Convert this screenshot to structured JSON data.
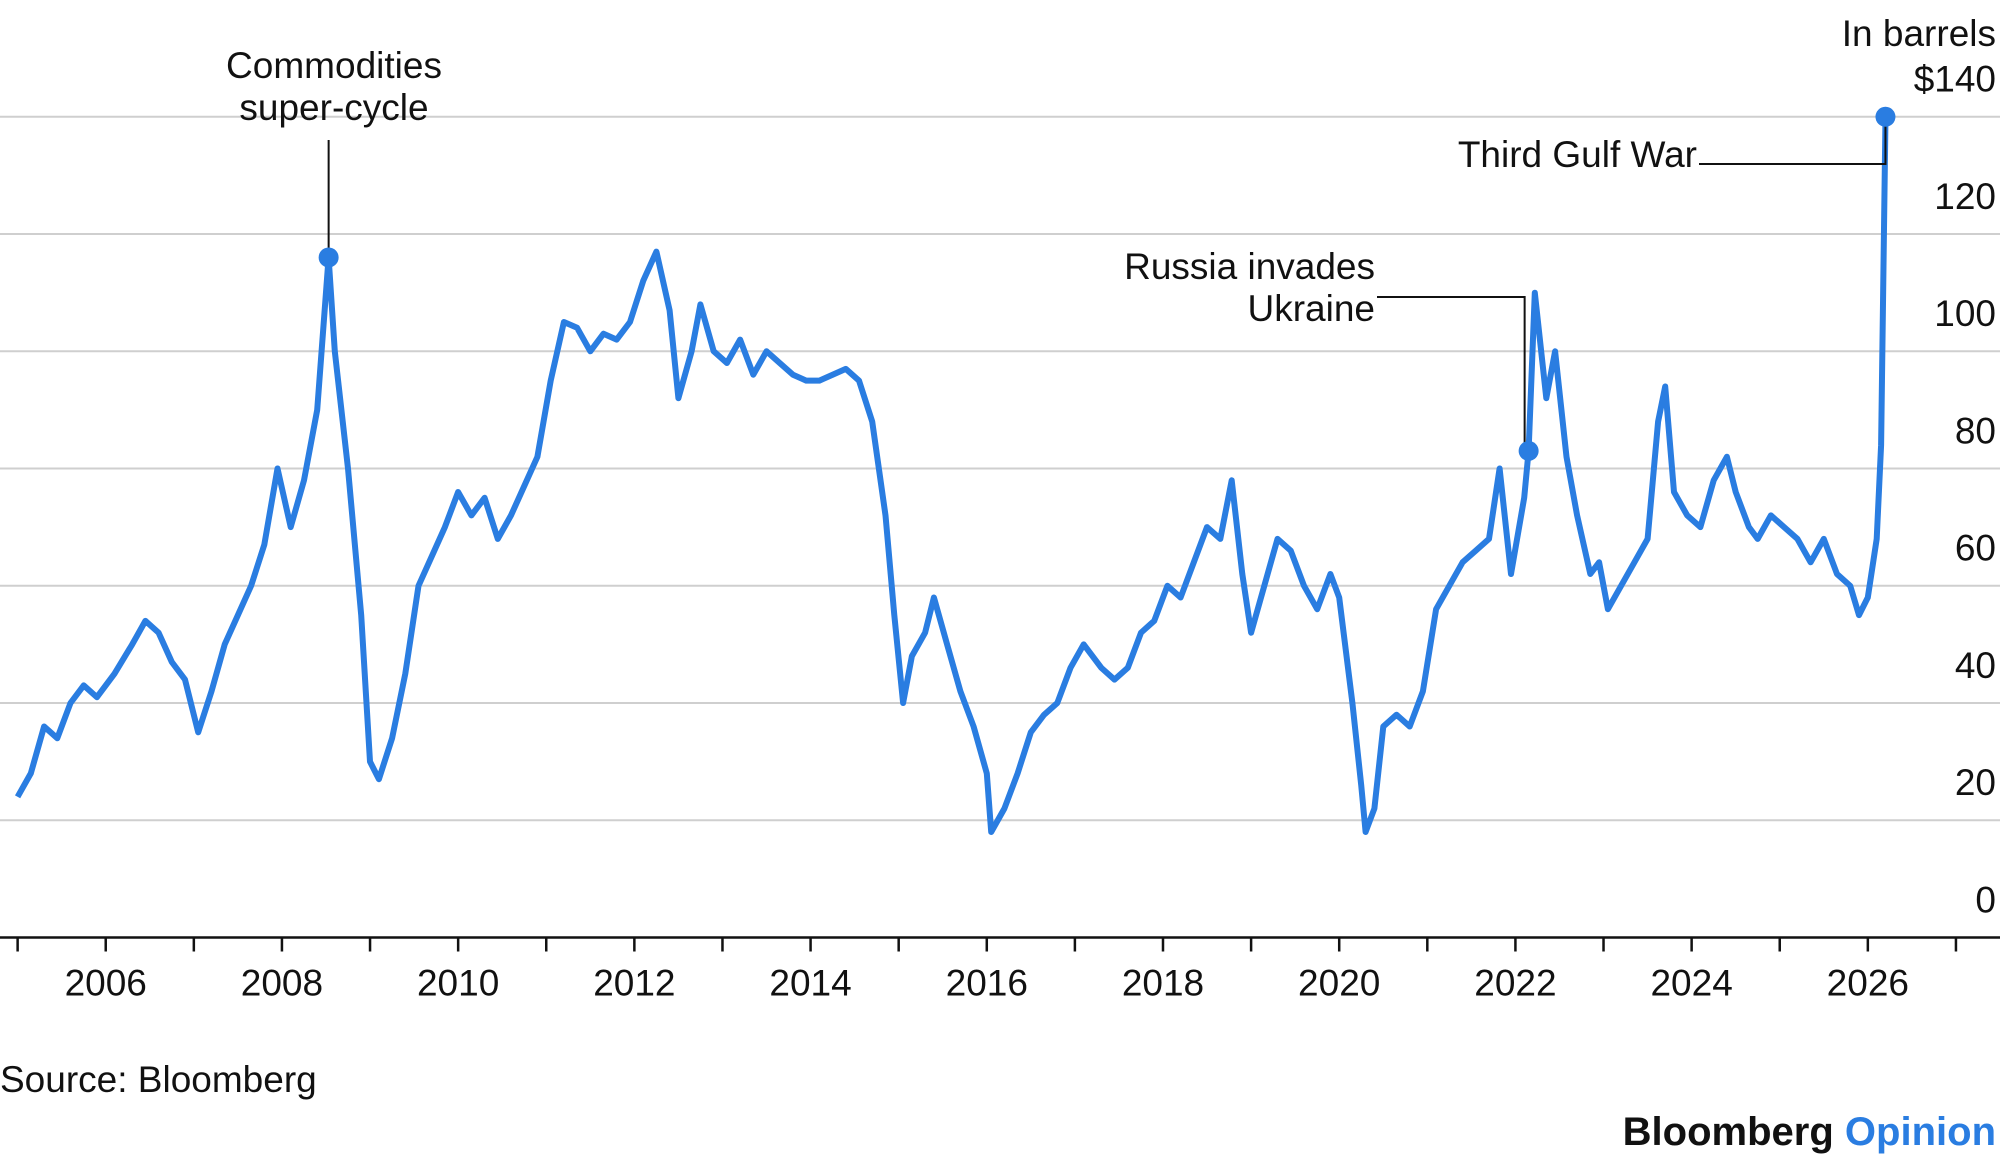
{
  "chart_data": {
    "type": "line",
    "y_label": "In barrels",
    "color": "#2a7de1",
    "xlim": [
      2004.8,
      2027.5
    ],
    "xticks": [
      2006,
      2008,
      2010,
      2012,
      2014,
      2016,
      2018,
      2020,
      2022,
      2024,
      2026
    ],
    "xminor_ticks": [
      2005,
      2007,
      2009,
      2011,
      2013,
      2015,
      2017,
      2019,
      2021,
      2023,
      2025,
      2027
    ],
    "ylim": [
      0,
      140
    ],
    "yticks": [
      0,
      20,
      40,
      60,
      80,
      100,
      120,
      {
        "value": 140,
        "label": "$140"
      }
    ],
    "grid": true,
    "x": [
      2005.0,
      2005.15,
      2005.3,
      2005.45,
      2005.6,
      2005.75,
      2005.9,
      2006.1,
      2006.3,
      2006.45,
      2006.6,
      2006.75,
      2006.9,
      2007.05,
      2007.2,
      2007.35,
      2007.5,
      2007.65,
      2007.8,
      2007.95,
      2008.1,
      2008.25,
      2008.4,
      2008.53,
      2008.6,
      2008.75,
      2008.9,
      2009.0,
      2009.1,
      2009.25,
      2009.4,
      2009.55,
      2009.7,
      2009.85,
      2010.0,
      2010.15,
      2010.3,
      2010.45,
      2010.6,
      2010.75,
      2010.9,
      2011.05,
      2011.2,
      2011.35,
      2011.5,
      2011.65,
      2011.8,
      2011.95,
      2012.1,
      2012.25,
      2012.4,
      2012.5,
      2012.65,
      2012.75,
      2012.9,
      2013.05,
      2013.2,
      2013.35,
      2013.5,
      2013.65,
      2013.8,
      2013.95,
      2014.1,
      2014.25,
      2014.4,
      2014.55,
      2014.7,
      2014.85,
      2014.95,
      2015.05,
      2015.15,
      2015.3,
      2015.4,
      2015.55,
      2015.7,
      2015.85,
      2016.0,
      2016.05,
      2016.2,
      2016.35,
      2016.5,
      2016.65,
      2016.8,
      2016.95,
      2017.1,
      2017.3,
      2017.45,
      2017.6,
      2017.75,
      2017.9,
      2018.05,
      2018.2,
      2018.35,
      2018.5,
      2018.65,
      2018.78,
      2018.9,
      2019.0,
      2019.15,
      2019.3,
      2019.45,
      2019.6,
      2019.75,
      2019.9,
      2020.0,
      2020.15,
      2020.25,
      2020.3,
      2020.4,
      2020.5,
      2020.65,
      2020.8,
      2020.95,
      2021.1,
      2021.25,
      2021.4,
      2021.55,
      2021.7,
      2021.82,
      2021.95,
      2022.1,
      2022.15,
      2022.22,
      2022.35,
      2022.45,
      2022.58,
      2022.7,
      2022.85,
      2022.95,
      2023.05,
      2023.2,
      2023.35,
      2023.5,
      2023.62,
      2023.7,
      2023.8,
      2023.95,
      2024.1,
      2024.25,
      2024.4,
      2024.5,
      2024.65,
      2024.75,
      2024.9,
      2025.05,
      2025.2,
      2025.35,
      2025.5,
      2025.65,
      2025.8,
      2025.9,
      2026.0,
      2026.1,
      2026.15,
      2026.2
    ],
    "values": [
      24,
      28,
      36,
      34,
      40,
      43,
      41,
      45,
      50,
      54,
      52,
      47,
      44,
      35,
      42,
      50,
      55,
      60,
      67,
      80,
      70,
      78,
      90,
      116,
      100,
      80,
      55,
      30,
      27,
      34,
      45,
      60,
      65,
      70,
      76,
      72,
      75,
      68,
      72,
      77,
      82,
      95,
      105,
      104,
      100,
      103,
      102,
      105,
      112,
      117,
      107,
      92,
      100,
      108,
      100,
      98,
      102,
      96,
      100,
      98,
      96,
      95,
      95,
      96,
      97,
      95,
      88,
      72,
      55,
      40,
      48,
      52,
      58,
      50,
      42,
      36,
      28,
      18,
      22,
      28,
      35,
      38,
      40,
      46,
      50,
      46,
      44,
      46,
      52,
      54,
      60,
      58,
      64,
      70,
      68,
      78,
      62,
      52,
      60,
      68,
      66,
      60,
      56,
      62,
      58,
      40,
      26,
      18,
      22,
      36,
      38,
      36,
      42,
      56,
      60,
      64,
      66,
      68,
      80,
      62,
      75,
      83,
      110,
      92,
      100,
      82,
      72,
      62,
      64,
      56,
      60,
      64,
      68,
      88,
      94,
      76,
      72,
      70,
      78,
      82,
      76,
      70,
      68,
      72,
      70,
      68,
      64,
      68,
      62,
      60,
      55,
      58,
      68,
      84,
      140
    ],
    "annotations": [
      {
        "text": [
          "Commodities",
          "super-cycle"
        ],
        "x": 2008.53,
        "y": 116
      },
      {
        "text": [
          "Russia invades",
          "Ukraine"
        ],
        "x": 2022.15,
        "y": 83
      },
      {
        "text": [
          "Third Gulf War"
        ],
        "x": 2026.2,
        "y": 140
      }
    ],
    "source": "Source: Bloomberg",
    "brand": [
      "Bloomberg",
      "Opinion"
    ]
  }
}
